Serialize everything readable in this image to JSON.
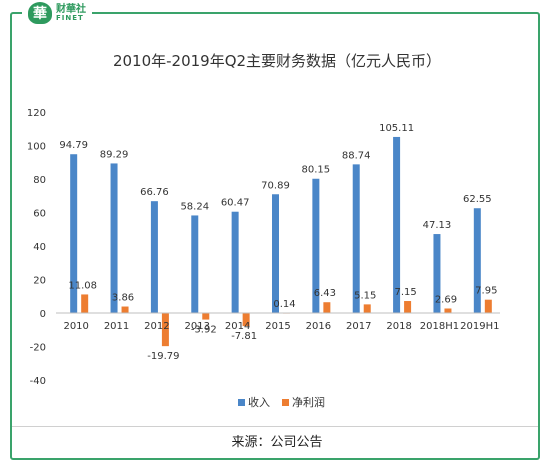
{
  "brand": {
    "mark": "華",
    "name_cn": "财華社",
    "name_en": "FINET"
  },
  "source_text": "来源：公司公告",
  "colors": {
    "revenue": "#4a86c8",
    "net_profit": "#ed7d31",
    "frame": "#3aa36b",
    "grid": "#d9d9d9",
    "axis_text": "#333333"
  },
  "chart_data": {
    "type": "bar",
    "title": "2010年-2019年Q2主要财务数据（亿元人民币）",
    "xlabel": "",
    "ylabel": "",
    "categories": [
      "2010",
      "2011",
      "2012",
      "2013",
      "2014",
      "2015",
      "2016",
      "2017",
      "2018",
      "2018H1",
      "2019H1"
    ],
    "series": [
      {
        "name": "收入",
        "values": [
          94.79,
          89.29,
          66.76,
          58.24,
          60.47,
          70.89,
          80.15,
          88.74,
          105.11,
          47.13,
          62.55
        ],
        "labels": [
          "94.79",
          "89.29",
          "66.76",
          "58.24",
          "60.47",
          "70.89",
          "80.15",
          "88.74",
          "105.11",
          "47.13",
          "62.55"
        ]
      },
      {
        "name": "净利润",
        "values": [
          11.08,
          3.86,
          -19.79,
          -3.92,
          -7.81,
          0.14,
          6.43,
          5.15,
          7.15,
          2.69,
          7.95
        ],
        "labels": [
          "11.08",
          "3.86",
          "-19.79",
          "-3.92",
          "-7.81",
          "0.14",
          "6.43",
          "5.15",
          "7.15",
          "2.69",
          "7.95"
        ]
      }
    ],
    "ylim": [
      -40,
      120
    ],
    "yticks": [
      "-40",
      "-20",
      "0",
      "20",
      "40",
      "60",
      "80",
      "100",
      "120"
    ],
    "grid": false,
    "legend": "bottom"
  }
}
